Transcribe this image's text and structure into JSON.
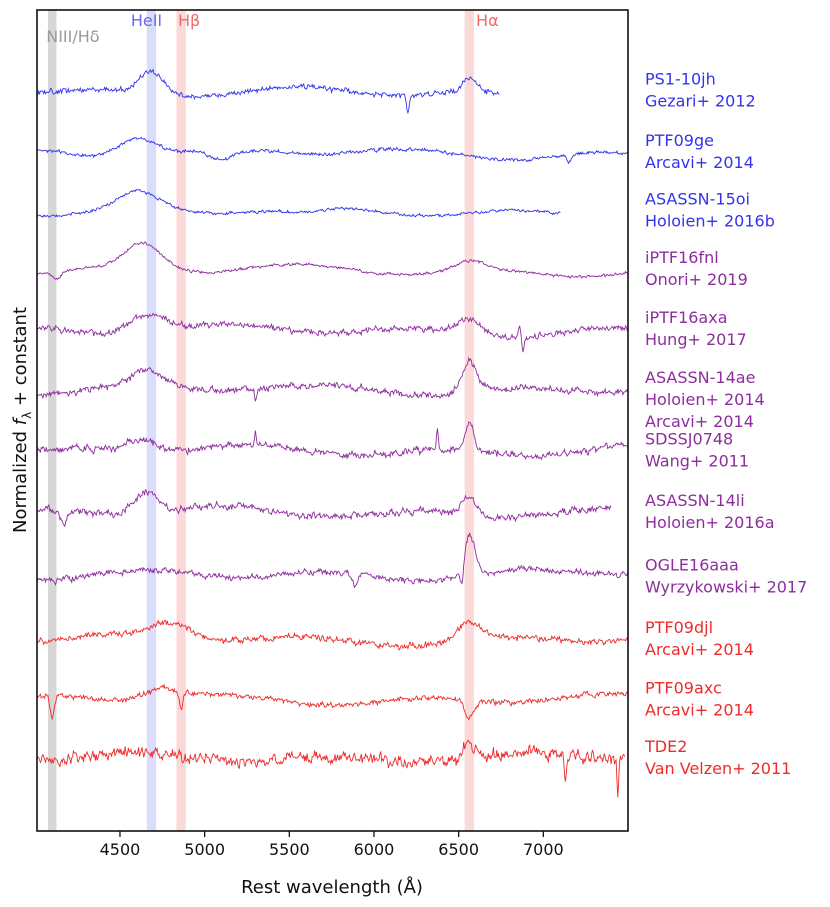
{
  "chart_data": {
    "type": "line",
    "title": "",
    "xlabel": "Rest wavelength (Å)",
    "ylabel_prefix": "Normalized ",
    "ylabel_symbol": "f",
    "ylabel_subscript": "λ",
    "ylabel_suffix": " + constant",
    "xlim": [
      4010,
      7500
    ],
    "x_ticks": [
      {
        "value": 4500,
        "label": "4500"
      },
      {
        "value": 5000,
        "label": "5000"
      },
      {
        "value": 5500,
        "label": "5500"
      },
      {
        "value": 6000,
        "label": "6000"
      },
      {
        "value": 6500,
        "label": "6500"
      },
      {
        "value": 7000,
        "label": "7000"
      }
    ],
    "line_bands": [
      {
        "name": "NIII/Hδ",
        "center": 4100,
        "width": 50,
        "color": "#d7d7d7",
        "text_color": "#9a9a9a"
      },
      {
        "name": "HeII",
        "center": 4686,
        "width": 55,
        "color": "#d9dcfb",
        "text_color": "#6b6bea"
      },
      {
        "name": "Hβ",
        "center": 4861,
        "width": 55,
        "color": "#fcd9d9",
        "text_color": "#f06a6a"
      },
      {
        "name": "Hα",
        "center": 6563,
        "width": 55,
        "color": "#fcd9d9",
        "text_color": "#f06a6a"
      }
    ],
    "series": [
      {
        "name": "PS1-10jh",
        "ref": "Gezari+ 2012",
        "color": "#3333ee",
        "offset": 11.0,
        "x_range": [
          4010,
          6740
        ],
        "noise": 0.05,
        "seed": 11,
        "features": [
          {
            "center": 4686,
            "width": 70,
            "amp": 0.38
          },
          {
            "center": 6563,
            "width": 40,
            "amp": 0.22
          },
          {
            "center": 6200,
            "width": 8,
            "amp": -0.28
          }
        ],
        "slope": -0.08
      },
      {
        "name": "PTF09ge",
        "ref": "Arcavi+ 2014",
        "color": "#3333ee",
        "offset": 10.0,
        "x_range": [
          4010,
          7500
        ],
        "noise": 0.035,
        "seed": 23,
        "features": [
          {
            "center": 4600,
            "width": 110,
            "amp": 0.32
          },
          {
            "center": 5100,
            "width": 70,
            "amp": -0.18
          },
          {
            "center": 7150,
            "width": 10,
            "amp": -0.15
          }
        ],
        "slope": -0.04
      },
      {
        "name": "ASASSN-15oi",
        "ref": "Holoien+ 2016b",
        "color": "#3333ee",
        "offset": 9.05,
        "x_range": [
          4010,
          7100
        ],
        "noise": 0.03,
        "seed": 37,
        "features": [
          {
            "center": 4610,
            "width": 120,
            "amp": 0.28
          },
          {
            "center": 5600,
            "width": 150,
            "amp": -0.1
          }
        ],
        "slope": -0.02
      },
      {
        "name": "iPTF16fnl",
        "ref": "Onori+ 2019",
        "color": "#8e2d9e",
        "offset": 8.1,
        "x_range": [
          4010,
          7500
        ],
        "noise": 0.028,
        "seed": 41,
        "features": [
          {
            "center": 4640,
            "width": 110,
            "amp": 0.42
          },
          {
            "center": 6563,
            "width": 90,
            "amp": 0.15
          },
          {
            "center": 4130,
            "width": 25,
            "amp": -0.12
          }
        ],
        "slope": -0.05
      },
      {
        "name": "iPTF16axa",
        "ref": "Hung+ 2017",
        "color": "#8e2d9e",
        "offset": 7.12,
        "x_range": [
          4010,
          7500
        ],
        "noise": 0.06,
        "seed": 53,
        "features": [
          {
            "center": 4660,
            "width": 100,
            "amp": 0.3
          },
          {
            "center": 6563,
            "width": 70,
            "amp": 0.25
          },
          {
            "center": 6860,
            "width": 6,
            "amp": 0.22
          },
          {
            "center": 6880,
            "width": 6,
            "amp": -0.25
          }
        ],
        "slope": -0.04
      },
      {
        "name": "ASASSN-14ae",
        "ref": "Holoien+ 2014",
        "ref2": "Arcavi+ 2014",
        "color": "#8e2d9e",
        "offset": 6.15,
        "x_range": [
          4010,
          7500
        ],
        "noise": 0.065,
        "seed": 67,
        "features": [
          {
            "center": 4660,
            "width": 90,
            "amp": 0.25
          },
          {
            "center": 6563,
            "width": 45,
            "amp": 0.5
          },
          {
            "center": 5300,
            "width": 6,
            "amp": -0.2
          }
        ],
        "slope": -0.03
      },
      {
        "name": "SDSSJ0748",
        "ref": "Wang+ 2011",
        "color": "#8e2d9e",
        "offset": 5.15,
        "x_range": [
          4010,
          7500
        ],
        "noise": 0.07,
        "seed": 79,
        "features": [
          {
            "center": 4620,
            "width": 100,
            "amp": 0.2
          },
          {
            "center": 6563,
            "width": 25,
            "amp": 0.45
          },
          {
            "center": 6375,
            "width": 5,
            "amp": 0.35
          },
          {
            "center": 5300,
            "width": 5,
            "amp": 0.25
          }
        ],
        "slope": -0.02
      },
      {
        "name": "ASASSN-14li",
        "ref": "Holoien+ 2016a",
        "color": "#8e2d9e",
        "offset": 4.15,
        "x_range": [
          4010,
          7400
        ],
        "noise": 0.07,
        "seed": 83,
        "features": [
          {
            "center": 4650,
            "width": 70,
            "amp": 0.35
          },
          {
            "center": 6563,
            "width": 45,
            "amp": 0.3
          },
          {
            "center": 4170,
            "width": 20,
            "amp": -0.2
          }
        ],
        "slope": -0.03
      },
      {
        "name": "OGLE16aaa",
        "ref": "Wyrzykowski+ 2017",
        "color": "#8e2d9e",
        "offset": 3.1,
        "x_range": [
          4010,
          7500
        ],
        "noise": 0.06,
        "seed": 97,
        "features": [
          {
            "center": 6563,
            "width": 35,
            "amp": 0.65
          },
          {
            "center": 6520,
            "width": 12,
            "amp": -0.35
          },
          {
            "center": 5890,
            "width": 15,
            "amp": -0.2
          }
        ],
        "slope": 0.05
      },
      {
        "name": "PTF09djl",
        "ref": "Arcavi+ 2014",
        "color": "#ee2b2b",
        "offset": 2.08,
        "x_range": [
          4010,
          7500
        ],
        "noise": 0.06,
        "seed": 101,
        "features": [
          {
            "center": 4800,
            "width": 120,
            "amp": 0.25
          },
          {
            "center": 6563,
            "width": 60,
            "amp": 0.3
          }
        ],
        "slope": -0.02
      },
      {
        "name": "PTF09axc",
        "ref": "Arcavi+ 2014",
        "color": "#ee2b2b",
        "offset": 1.1,
        "x_range": [
          4010,
          7500
        ],
        "noise": 0.05,
        "seed": 113,
        "features": [
          {
            "center": 4750,
            "width": 100,
            "amp": 0.18
          },
          {
            "center": 6563,
            "width": 25,
            "amp": -0.3
          },
          {
            "center": 4861,
            "width": 10,
            "amp": -0.3
          },
          {
            "center": 4100,
            "width": 12,
            "amp": -0.35
          }
        ],
        "slope": -0.01
      },
      {
        "name": "TDE2",
        "ref": "Van Velzen+ 2011",
        "color": "#ee2b2b",
        "offset": 0.15,
        "x_range": [
          4010,
          7480
        ],
        "noise": 0.12,
        "seed": 127,
        "features": [
          {
            "center": 6563,
            "width": 30,
            "amp": 0.3
          },
          {
            "center": 7130,
            "width": 6,
            "amp": -0.45
          },
          {
            "center": 7440,
            "width": 5,
            "amp": -0.6
          }
        ],
        "slope": 0.0
      }
    ]
  }
}
